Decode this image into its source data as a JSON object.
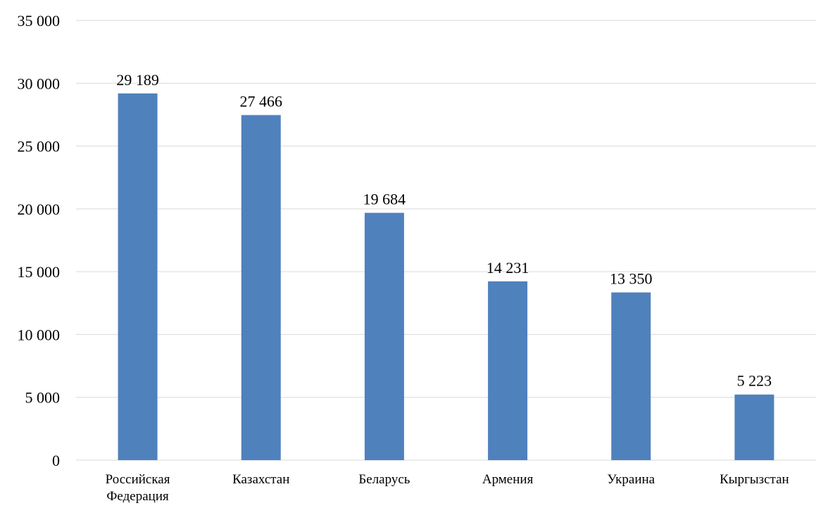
{
  "chart_data": {
    "type": "bar",
    "categories": [
      [
        "Российская",
        "Федерация"
      ],
      [
        "Казахстан"
      ],
      [
        "Беларусь"
      ],
      [
        "Армения"
      ],
      [
        "Украина"
      ],
      [
        "Кыргызстан"
      ]
    ],
    "values": [
      29189,
      27466,
      19684,
      14231,
      13350,
      5223
    ],
    "data_labels": [
      "29 189",
      "27 466",
      "19 684",
      "14 231",
      "13 350",
      "5 223"
    ],
    "y_ticks": [
      0,
      5000,
      10000,
      15000,
      20000,
      25000,
      30000,
      35000
    ],
    "y_tick_labels": [
      "0",
      "5 000",
      "10 000",
      "15 000",
      "20 000",
      "25 000",
      "30 000",
      "35 000"
    ],
    "ylim": [
      0,
      35000
    ],
    "title": "",
    "xlabel": "",
    "ylabel": "",
    "grid": true,
    "legend": "none",
    "bar_color": "#4f81bd",
    "grid_color": "#d9d9d9"
  }
}
